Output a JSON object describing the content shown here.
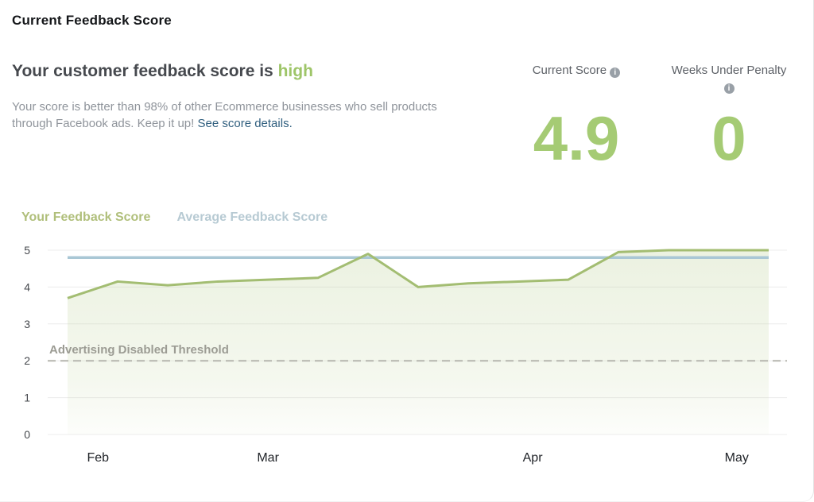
{
  "page": {
    "title": "Current Feedback Score"
  },
  "summary": {
    "heading_prefix": "Your customer feedback score is ",
    "heading_highlight": "high",
    "body_text": "Your score is better than 98% of other Ecommerce businesses who sell products through Facebook ads. Keep it up! ",
    "link_text": "See score details."
  },
  "stats": [
    {
      "label": "Current Score",
      "value": "4.9"
    },
    {
      "label": "Weeks Under Penalty",
      "value": "0"
    }
  ],
  "colors": {
    "accent_green": "#a5cb74",
    "highlight_green": "#9ec568",
    "legend_green": "#b0bf7b",
    "legend_blue": "#b7cad3",
    "link_blue": "#2f5e7e"
  },
  "chart_data": {
    "type": "line",
    "title": "Feedback score over time",
    "xlabel": "",
    "ylabel": "",
    "ylim": [
      0,
      5
    ],
    "yticks": [
      0,
      1,
      2,
      3,
      4,
      5
    ],
    "grid": true,
    "legend_position": "top-left",
    "x_months": [
      "Feb",
      "Mar",
      "Apr",
      "May"
    ],
    "month_fracs": [
      0.068,
      0.298,
      0.656,
      0.932
    ],
    "series": [
      {
        "name": "Your Feedback Score",
        "color": "#a3bd72",
        "fill": true,
        "values": [
          3.7,
          4.15,
          4.05,
          4.15,
          4.2,
          4.25,
          4.9,
          4.0,
          4.1,
          4.15,
          4.2,
          4.95,
          5.0,
          5.0,
          5.0
        ]
      },
      {
        "name": "Average Feedback Score",
        "color": "#a9c7d5",
        "fill": false,
        "values": [
          4.8,
          4.8,
          4.8,
          4.8,
          4.8,
          4.8,
          4.8,
          4.8,
          4.8,
          4.8,
          4.8,
          4.8,
          4.8,
          4.8,
          4.8
        ]
      }
    ],
    "threshold": {
      "label": "Advertising Disabled Threshold",
      "value": 2,
      "color": "#b5b5ae"
    }
  }
}
